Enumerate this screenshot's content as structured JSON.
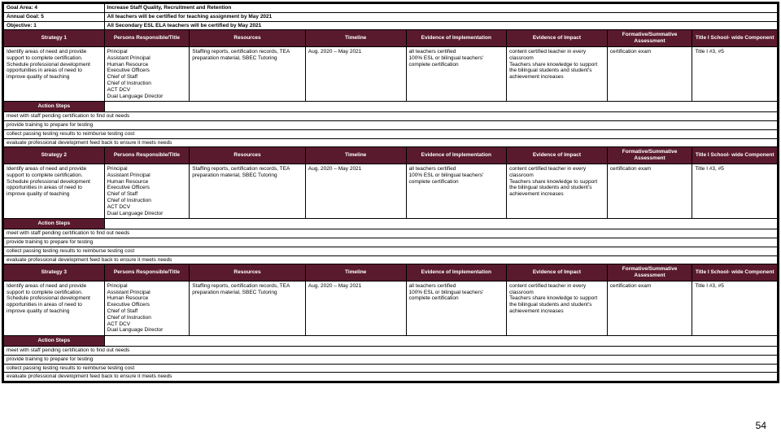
{
  "header": {
    "goalAreaLabel": "Goal Area: 4",
    "goalAreaValue": "Increase Staff Quality, Recruitment and Retention",
    "annualGoalLabel": "Annual Goal: 5",
    "annualGoalValue": "All teachers will be certified for teaching assignment by May 2021",
    "objectiveLabel": "Objective: 1",
    "objectiveValue": "All Secondary ESL ELA teachers will be certified by May 2021"
  },
  "columns": [
    "Persons Responsible/Title",
    "Resources",
    "Timeline",
    "Evidence of Implementation",
    "Evidence of Impact",
    "Formative/Summative Assessment",
    "Title I School- wide Component"
  ],
  "strategies": [
    {
      "strategyLabel": "Strategy 1",
      "strategy": "Identify areas of need and provide support to complete certification. Schedule professional development opportunities in areas of need to improve quality of teaching",
      "persons": "Principal\nAssistant Principal\nHuman Resource\nExecutive Officers\nChief of Staff\nChief of Instruction\nACT DCV\nDual Language Director",
      "resources": "Staffing reports, certification records, TEA preparation material, SBEC Tutoring",
      "timeline": "Aug. 2020 – May 2021",
      "evidenceImpl": "all teachers certified\n100% ESL or bilingual teachers' complete certification",
      "evidenceImpact": "content certified teacher in every classroom\nTeachers share knowledge to support the bilingual students and student's achievement increases",
      "assessment": "certification exam",
      "titlei": "Title I #3, #5",
      "actionSteps": [
        "meet with staff pending certification to find out needs",
        "provide training to prepare for testing",
        "collect passing testing results to reimburse testing cost",
        "evaluate professional development feed back to ensure it meets needs"
      ]
    },
    {
      "strategyLabel": "Strategy 2",
      "strategy": "Identify areas of need and provide support to complete certification. Schedule professional development opportunities in areas of need to improve quality of teaching",
      "persons": "Principal\nAssistant Principal\nHuman Resource\nExecutive Officers\nChief of Staff\nChief of Instruction\nACT DCV\nDual Language Director",
      "resources": "Staffing reports, certification records, TEA preparation material, SBEC Tutoring",
      "timeline": "Aug. 2020 – May 2021",
      "evidenceImpl": "all teachers certified\n100% ESL or bilingual teachers' complete certification",
      "evidenceImpact": "content certified teacher in every classroom\nTeachers share knowledge to support the bilingual students and student's achievement increases",
      "assessment": "certification exam",
      "titlei": "Title I #3, #5",
      "actionSteps": [
        "meet with staff pending certification to find out needs",
        "provide training to prepare for testing",
        "collect passing testing results to reimburse testing cost",
        "evaluate professional development feed back to ensure it meets needs"
      ]
    },
    {
      "strategyLabel": "Strategy 3",
      "strategy": "Identify areas of need and provide support to complete certification. Schedule professional development opportunities in areas of need to improve quality of teaching",
      "persons": "Principal\nAssistant Principal\nHuman Resource\nExecutive Officers\nChief of Staff\nChief of Instruction\nACT DCV\nDual Language Director",
      "resources": "Staffing reports, certification records, TEA preparation material, SBEC Tutoring",
      "timeline": "Aug. 2020 – May 2021",
      "evidenceImpl": "all teachers certified\n100% ESL or bilingual teachers' complete certification",
      "evidenceImpact": "content certified teacher in every classroom\nTeachers share knowledge to support the bilingual students and student's achievement increases",
      "assessment": "certification exam",
      "titlei": "Title I #3, #5",
      "actionSteps": [
        "meet with staff pending certification to find out needs",
        "provide training to prepare for testing",
        "collect passing testing results to reimburse testing cost",
        "evaluate professional development feed back to ensure it meets needs"
      ]
    }
  ],
  "actionStepsLabel": "Action Steps",
  "pageNumber": "54"
}
